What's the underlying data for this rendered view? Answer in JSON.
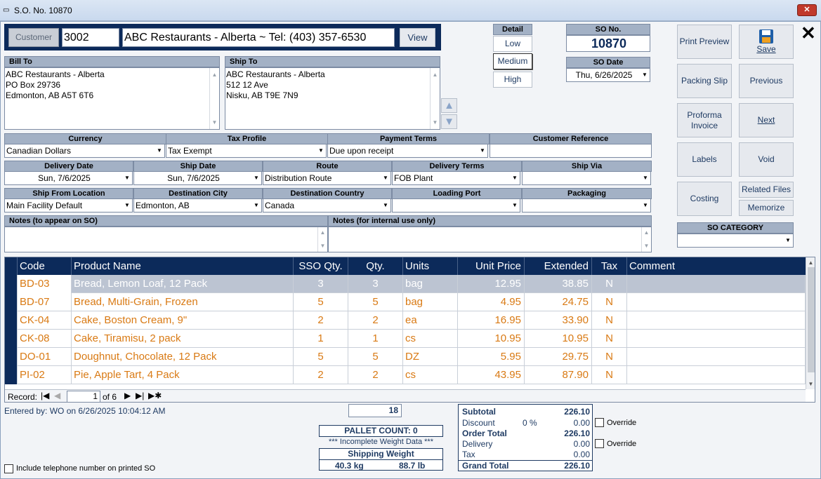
{
  "window": {
    "title": "S.O. No. 10870",
    "close": "✕"
  },
  "customer": {
    "button": "Customer",
    "code": "3002",
    "name": "ABC Restaurants - Alberta  ~  Tel: (403) 357-6530",
    "view": "View"
  },
  "detail": {
    "header": "Detail",
    "options": [
      "Low",
      "Medium",
      "High"
    ],
    "selected": "Medium"
  },
  "so": {
    "no_label": "SO No.",
    "no": "10870",
    "date_label": "SO Date",
    "date": "Thu, 6/26/2025"
  },
  "bill_to": {
    "label": "Bill To",
    "lines": [
      "ABC Restaurants - Alberta",
      "PO Box 29736",
      "Edmonton, AB  A5T 6T6"
    ]
  },
  "ship_to": {
    "label": "Ship To",
    "lines": [
      "ABC Restaurants - Alberta",
      "512 12 Ave",
      "Nisku, AB  T9E 7N9"
    ]
  },
  "fields": {
    "currency": {
      "label": "Currency",
      "value": "Canadian Dollars"
    },
    "tax_profile": {
      "label": "Tax Profile",
      "value": "Tax Exempt"
    },
    "payment_terms": {
      "label": "Payment Terms",
      "value": "Due upon receipt"
    },
    "customer_reference": {
      "label": "Customer Reference",
      "value": ""
    },
    "delivery_date": {
      "label": "Delivery Date",
      "value": "Sun, 7/6/2025"
    },
    "ship_date": {
      "label": "Ship Date",
      "value": "Sun, 7/6/2025"
    },
    "route": {
      "label": "Route",
      "value": "Distribution Route"
    },
    "delivery_terms": {
      "label": "Delivery Terms",
      "value": "FOB Plant"
    },
    "ship_via": {
      "label": "Ship Via",
      "value": ""
    },
    "ship_from": {
      "label": "Ship From Location",
      "value": "Main Facility Default"
    },
    "dest_city": {
      "label": "Destination City",
      "value": "Edmonton, AB"
    },
    "dest_country": {
      "label": "Destination Country",
      "value": "Canada"
    },
    "loading_port": {
      "label": "Loading Port",
      "value": ""
    },
    "packaging": {
      "label": "Packaging",
      "value": ""
    },
    "notes_so": {
      "label": "Notes (to appear on SO)",
      "value": ""
    },
    "notes_internal": {
      "label": "Notes (for internal use only)",
      "value": ""
    }
  },
  "actions": {
    "print_preview": "Print Preview",
    "save": "Save",
    "packing_slip": "Packing Slip",
    "previous": "Previous",
    "proforma": "Proforma Invoice",
    "next": "Next",
    "labels": "Labels",
    "void": "Void",
    "costing": "Costing",
    "related_files": "Related Files",
    "memorize": "Memorize",
    "close_icon": "✕"
  },
  "so_category": {
    "label": "SO CATEGORY",
    "value": ""
  },
  "grid": {
    "columns": [
      "Code",
      "Product Name",
      "SSO Qty.",
      "Qty.",
      "Units",
      "Unit Price",
      "Extended",
      "Tax",
      "Comment"
    ],
    "rows": [
      {
        "code": "BD-03",
        "name": "Bread, Lemon Loaf, 12 Pack",
        "sso": "3",
        "qty": "3",
        "units": "bag",
        "price": "12.95",
        "ext": "38.85",
        "tax": "N",
        "comment": ""
      },
      {
        "code": "BD-07",
        "name": "Bread, Multi-Grain, Frozen",
        "sso": "5",
        "qty": "5",
        "units": "bag",
        "price": "4.95",
        "ext": "24.75",
        "tax": "N",
        "comment": ""
      },
      {
        "code": "CK-04",
        "name": "Cake, Boston Cream, 9\"",
        "sso": "2",
        "qty": "2",
        "units": "ea",
        "price": "16.95",
        "ext": "33.90",
        "tax": "N",
        "comment": ""
      },
      {
        "code": "CK-08",
        "name": "Cake, Tiramisu, 2 pack",
        "sso": "1",
        "qty": "1",
        "units": "cs",
        "price": "10.95",
        "ext": "10.95",
        "tax": "N",
        "comment": ""
      },
      {
        "code": "DO-01",
        "name": "Doughnut, Chocolate, 12 Pack",
        "sso": "5",
        "qty": "5",
        "units": "DZ",
        "price": "5.95",
        "ext": "29.75",
        "tax": "N",
        "comment": ""
      },
      {
        "code": "PI-02",
        "name": "Pie, Apple Tart, 4 Pack",
        "sso": "2",
        "qty": "2",
        "units": "cs",
        "price": "43.95",
        "ext": "87.90",
        "tax": "N",
        "comment": ""
      }
    ],
    "nav": {
      "label": "Record:",
      "current": "1",
      "of": "of 6"
    }
  },
  "footer": {
    "entered_by": "Entered by: WO on 6/26/2025 10:04:12 AM",
    "qty_total": "18",
    "pallet_count": "PALLET COUNT: 0",
    "incomplete": "*** Incomplete Weight Data ***",
    "shipping_weight_label": "Shipping Weight",
    "weight_kg": "40.3 kg",
    "weight_lb": "88.7 lb",
    "include_phone": "Include telephone number on printed SO"
  },
  "totals": {
    "subtotal_label": "Subtotal",
    "subtotal": "226.10",
    "discount_label": "Discount",
    "discount_pct": "0 %",
    "discount": "0.00",
    "order_total_label": "Order Total",
    "order_total": "226.10",
    "delivery_label": "Delivery",
    "delivery": "0.00",
    "tax_label": "Tax",
    "tax": "0.00",
    "grand_total_label": "Grand Total",
    "grand_total": "226.10",
    "override": "Override"
  }
}
